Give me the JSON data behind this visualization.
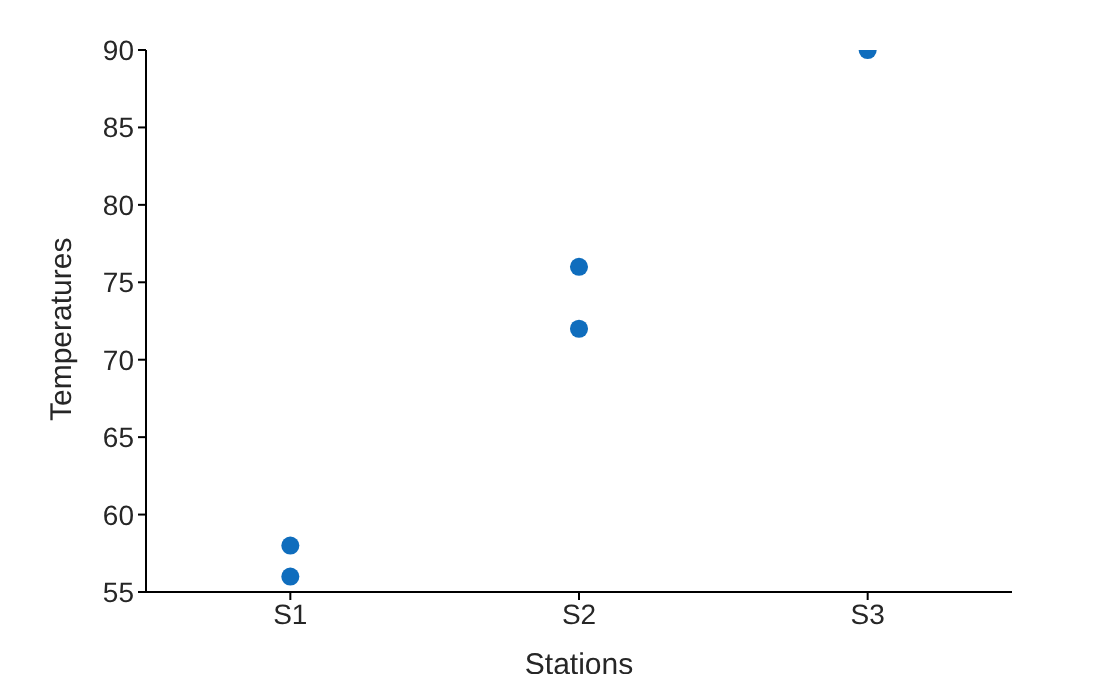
{
  "chart_data": {
    "type": "scatter",
    "xlabel": "Stations",
    "ylabel": "Temperatures",
    "categories": [
      "S1",
      "S2",
      "S3"
    ],
    "series": [
      {
        "x": [
          "S1",
          "S1",
          "S2",
          "S2",
          "S3"
        ],
        "values": [
          58,
          56,
          76,
          72,
          90
        ],
        "color": "#0f6dbd"
      }
    ],
    "ylim": [
      55,
      90
    ],
    "yticks": [
      55,
      60,
      65,
      70,
      75,
      80,
      85,
      90
    ],
    "grid": false,
    "legend": false,
    "marker": "circle"
  }
}
